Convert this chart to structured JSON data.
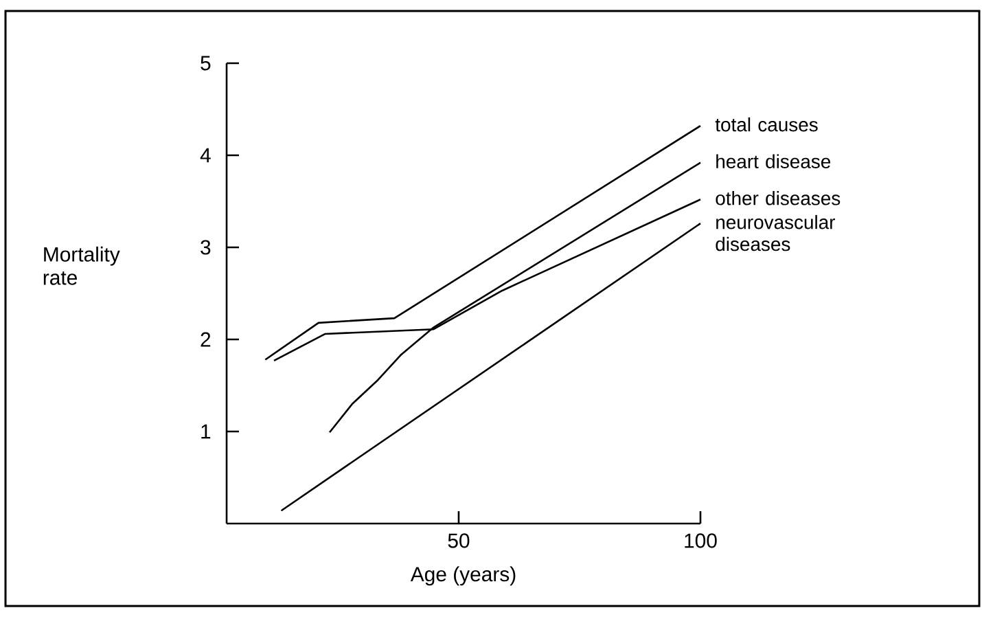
{
  "chart_data": {
    "type": "line",
    "xlabel": "Age (years)",
    "ylabel": "Mortality rate",
    "xlim": [
      2,
      100
    ],
    "ylim": [
      0,
      5
    ],
    "xticks": [
      50,
      100
    ],
    "yticks": [
      1,
      2,
      3,
      4,
      5
    ],
    "grid": false,
    "legend": false,
    "marker": "none",
    "line_style": "solid",
    "series": [
      {
        "name": "total causes",
        "color": "#000000",
        "x": [
          10,
          21,
          36.7,
          100
        ],
        "values": [
          1.78,
          2.18,
          2.23,
          4.32
        ]
      },
      {
        "name": "heart disease",
        "color": "#000000",
        "x": [
          23.3,
          28,
          33.3,
          38,
          44.8,
          100
        ],
        "values": [
          0.99,
          1.3,
          1.56,
          1.83,
          2.13,
          3.92
        ]
      },
      {
        "name": "other diseases",
        "color": "#000000",
        "x": [
          11.8,
          22.4,
          44.8,
          59,
          100
        ],
        "values": [
          1.77,
          2.06,
          2.11,
          2.53,
          3.52
        ]
      },
      {
        "name": "neurovascular diseases",
        "color": "#000000",
        "x": [
          13.3,
          100
        ],
        "values": [
          0.14,
          3.26
        ]
      }
    ]
  }
}
